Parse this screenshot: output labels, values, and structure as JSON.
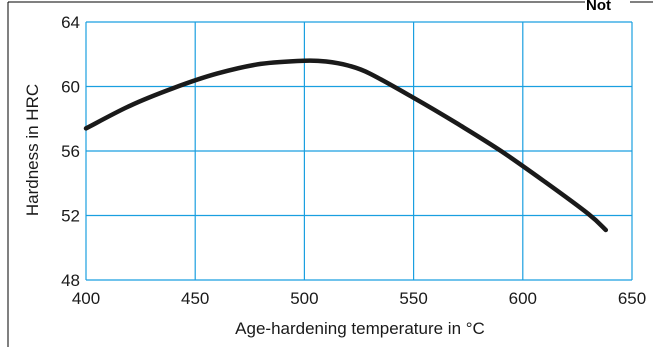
{
  "chart_data": {
    "type": "line",
    "title": "",
    "xlabel": "Age-hardening temperature in °C",
    "ylabel": "Hardness in HRC",
    "xlim": [
      400,
      650
    ],
    "ylim": [
      48,
      64
    ],
    "x_ticks": [
      400,
      450,
      500,
      550,
      600,
      650
    ],
    "y_ticks": [
      48,
      52,
      56,
      60,
      64
    ],
    "grid": true,
    "grid_color": "#1a9fe0",
    "line_color": "#1a1a1a",
    "series": [
      {
        "x": [
          400,
          420,
          440,
          460,
          480,
          500,
          510,
          520,
          530,
          550,
          570,
          590,
          610,
          630,
          638
        ],
        "y": [
          57.4,
          58.8,
          59.9,
          60.8,
          61.4,
          61.6,
          61.55,
          61.3,
          60.8,
          59.3,
          57.7,
          56.0,
          54.1,
          52.1,
          51.1
        ]
      }
    ],
    "cut_text": "Not"
  }
}
